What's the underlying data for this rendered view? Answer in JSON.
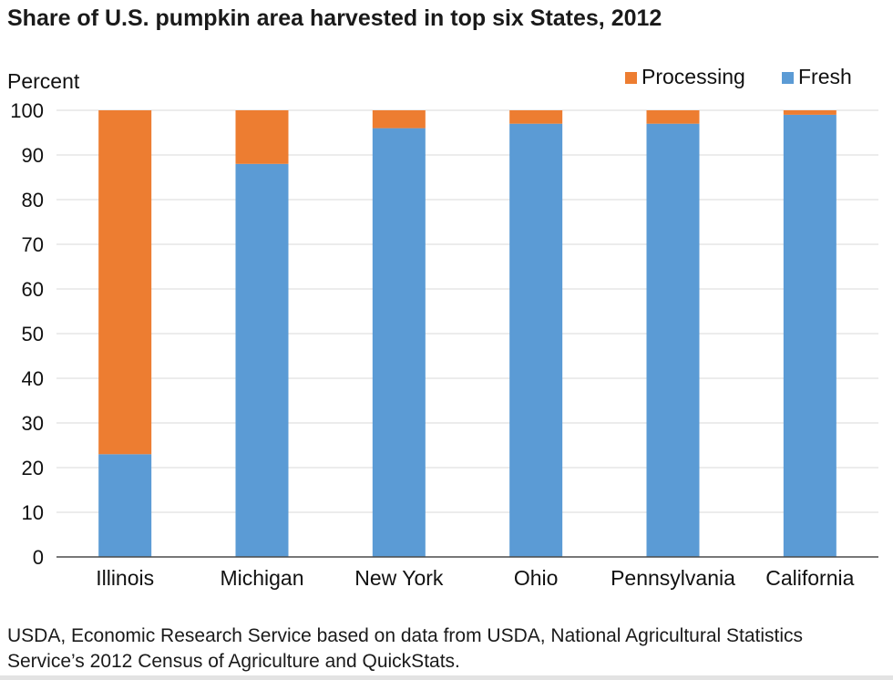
{
  "title": "Share of U.S. pumpkin area harvested in top six States, 2012",
  "source_note": "USDA, Economic Research Service based on data from USDA, National Agricultural Statistics Service’s 2012 Census of Agriculture and QuickStats.",
  "colors": {
    "processing": "#ED7D31",
    "fresh": "#5B9BD5",
    "grid": "#D9D9D9",
    "axis": "#4a4a4a"
  },
  "chart_data": {
    "type": "bar",
    "stacked": true,
    "title": "Share of U.S. pumpkin area harvested in top six States, 2012",
    "ylabel": "Percent",
    "xlabel": "",
    "ylim": [
      0,
      100
    ],
    "yticks": [
      0,
      10,
      20,
      30,
      40,
      50,
      60,
      70,
      80,
      90,
      100
    ],
    "grid": true,
    "legend_position": "top-right",
    "categories": [
      "Illinois",
      "Michigan",
      "New York",
      "Ohio",
      "Pennsylvania",
      "California"
    ],
    "series": [
      {
        "name": "Fresh",
        "color": "#5B9BD5",
        "values": [
          23,
          88,
          96,
          97,
          97,
          99
        ]
      },
      {
        "name": "Processing",
        "color": "#ED7D31",
        "values": [
          77,
          12,
          4,
          3,
          3,
          1
        ]
      }
    ],
    "legend_order": [
      "Processing",
      "Fresh"
    ]
  }
}
